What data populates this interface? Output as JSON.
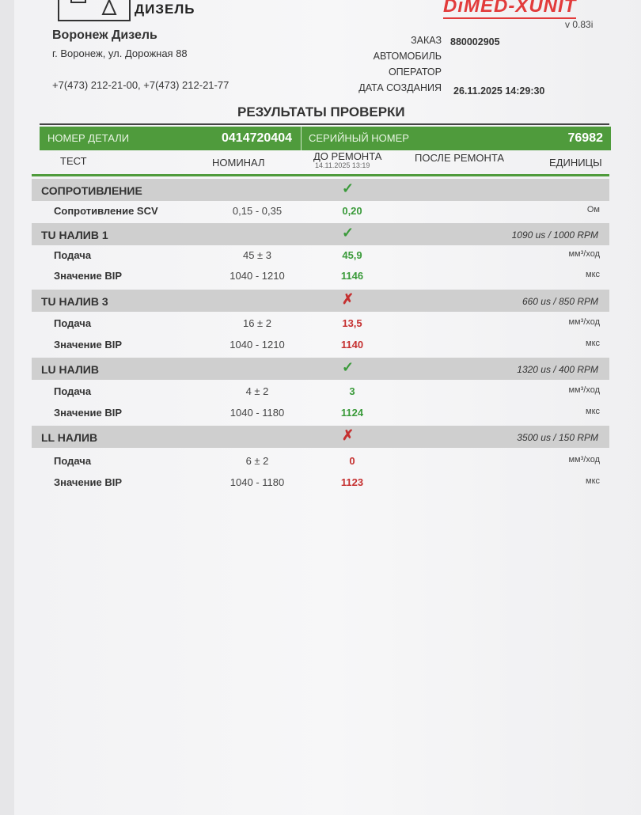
{
  "header": {
    "logo_text": "ДИЗЕЛЬ",
    "brand": "DiMED-XUNIT",
    "version": "v 0.83i",
    "company": "Воронеж Дизель",
    "address": "г. Воронеж, ул. Дорожная 88",
    "phones": "+7(473) 212-21-00, +7(473) 212-21-77",
    "order_label": "ЗАКАЗ",
    "order_value": "880002905",
    "car_label": "АВТОМОБИЛЬ",
    "operator_label": "ОПЕРАТОР",
    "date_label": "ДАТА СОЗДАНИЯ",
    "date_value": "26.11.2025  14:29:30"
  },
  "title": "РЕЗУЛЬТАТЫ ПРОВЕРКИ",
  "part": {
    "part_label": "НОМЕР ДЕТАЛИ",
    "part_value": "0414720404",
    "serial_label": "СЕРИЙНЫЙ НОМЕР",
    "serial_value": "76982"
  },
  "columns": {
    "test": "ТЕСТ",
    "nominal": "НОМИНАЛ",
    "before": "ДО РЕМОНТА",
    "before_date": "14.11.2025  13:19",
    "after": "ПОСЛЕ РЕМОНТА",
    "units": "ЕДИНИЦЫ"
  },
  "colors": {
    "green": "#4f9b3c",
    "pass": "#3a9a3a",
    "fail": "#c53030"
  },
  "sections": [
    {
      "name": "СОПРОТИВЛЕНИЕ",
      "mode": "",
      "status": "pass",
      "mark": "✓",
      "rows": [
        {
          "name": "Сопротивление SCV",
          "nominal": "0,15 - 0,35",
          "before": "0,20",
          "unit": "Ом"
        }
      ]
    },
    {
      "name": "TU НАЛИВ 1",
      "mode": "1090 us / 1000 RPM",
      "status": "pass",
      "mark": "✓",
      "rows": [
        {
          "name": "Подача",
          "nominal": "45 ± 3",
          "before": "45,9",
          "unit": "мм³/ход"
        },
        {
          "name": "Значение BIP",
          "nominal": "1040 - 1210",
          "before": "1146",
          "unit": "мкс"
        }
      ]
    },
    {
      "name": "TU НАЛИВ 3",
      "mode": "660 us / 850 RPM",
      "status": "fail",
      "mark": "✗",
      "rows": [
        {
          "name": "Подача",
          "nominal": "16 ± 2",
          "before": "13,5",
          "unit": "мм³/ход"
        },
        {
          "name": "Значение BIP",
          "nominal": "1040 - 1210",
          "before": "1140",
          "unit": "мкс"
        }
      ]
    },
    {
      "name": "LU НАЛИВ",
      "mode": "1320 us / 400 RPM",
      "status": "pass",
      "mark": "✓",
      "rows": [
        {
          "name": "Подача",
          "nominal": "4 ± 2",
          "before": "3",
          "unit": "мм³/ход"
        },
        {
          "name": "Значение BIP",
          "nominal": "1040 - 1180",
          "before": "1124",
          "unit": "мкс"
        }
      ]
    },
    {
      "name": "LL НАЛИВ",
      "mode": "3500 us / 150 RPM",
      "status": "fail",
      "mark": "✗",
      "rows": [
        {
          "name": "Подача",
          "nominal": "6 ± 2",
          "before": "0",
          "unit": "мм³/ход"
        },
        {
          "name": "Значение BIP",
          "nominal": "1040 - 1180",
          "before": "1123",
          "unit": "мкс"
        }
      ]
    }
  ]
}
